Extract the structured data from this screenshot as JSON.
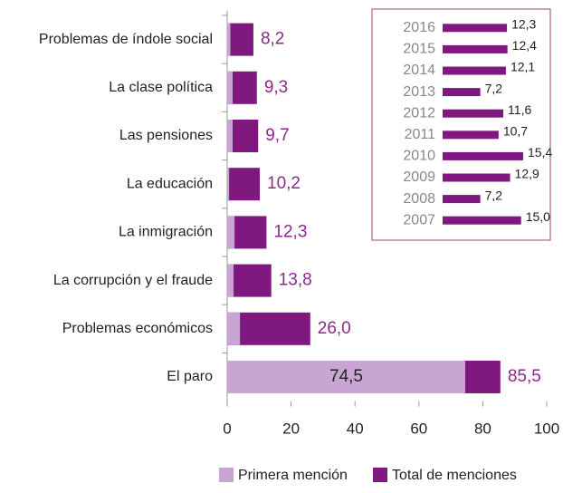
{
  "chart_data": [
    {
      "type": "hbar-overlap",
      "categories": [
        "Problemas de índole social",
        "La clase política",
        "Las pensiones",
        "La educación",
        "La inmigración",
        "La corrupción y el fraude",
        "Problemas económicos",
        "El paro"
      ],
      "series": [
        {
          "name": "Primera mención",
          "color": "#c9a5d3",
          "values": [
            1.0,
            1.7,
            1.7,
            0.6,
            2.3,
            2.0,
            4.0,
            74.5
          ],
          "value_labels": [
            null,
            null,
            null,
            null,
            null,
            null,
            null,
            "74,5"
          ]
        },
        {
          "name": "Total de menciones",
          "color": "#80197f",
          "values": [
            8.2,
            9.3,
            9.7,
            10.2,
            12.3,
            13.8,
            26.0,
            85.5
          ],
          "value_labels": [
            "8,2",
            "9,3",
            "9,7",
            "10,2",
            "12,3",
            "13,8",
            "26,0",
            "85,5"
          ]
        }
      ],
      "xlim": [
        0,
        100
      ],
      "xticks": [
        0,
        20,
        40,
        60,
        80,
        100
      ],
      "legend": "bottom"
    },
    {
      "type": "hbar",
      "categories": [
        "2016",
        "2015",
        "2014",
        "2013",
        "2012",
        "2011",
        "2010",
        "2009",
        "2008",
        "2007"
      ],
      "values": [
        12.3,
        12.4,
        12.1,
        7.2,
        11.6,
        10.7,
        15.4,
        12.9,
        7.2,
        15.0
      ],
      "value_labels": [
        "12,3",
        "12,4",
        "12,1",
        "7,2",
        "11,6",
        "10,7",
        "15,4",
        "12,9",
        "7,2",
        "15,0"
      ],
      "color": "#80197f"
    }
  ]
}
